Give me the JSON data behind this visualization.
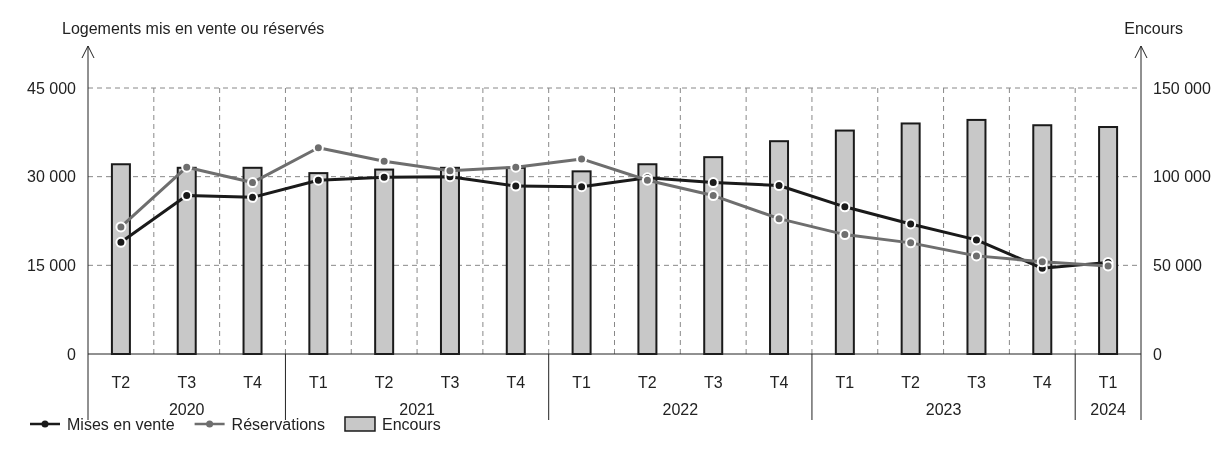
{
  "chart_data": {
    "type": "bar",
    "ylabel": "Logements mis en vente ou réservés",
    "y2label": "Encours",
    "categories": [
      "T2",
      "T3",
      "T4",
      "T1",
      "T2",
      "T3",
      "T4",
      "T1",
      "T2",
      "T3",
      "T4",
      "T1",
      "T2",
      "T3",
      "T4",
      "T1"
    ],
    "annotations": [
      "2020",
      "2021",
      "2022",
      "2023",
      "2024"
    ],
    "series": [
      {
        "name": "Mises en vente",
        "type": "line",
        "color": "#1a1a1a",
        "values": [
          18900,
          26800,
          26500,
          29400,
          29900,
          30000,
          28400,
          28300,
          29800,
          29000,
          28500,
          24900,
          22000,
          19300,
          14500,
          15500
        ]
      },
      {
        "name": "Réservations",
        "type": "line",
        "color": "#6e6e6e",
        "values": [
          21500,
          31600,
          29000,
          34900,
          32600,
          31000,
          31600,
          33000,
          29400,
          26800,
          22900,
          20200,
          18800,
          16600,
          15600,
          14900
        ]
      },
      {
        "name": "Encours",
        "axis": "y2",
        "color": "#c8c8c8",
        "values": [
          107000,
          105000,
          105000,
          102000,
          104000,
          105000,
          105000,
          103000,
          107000,
          111000,
          120000,
          126000,
          130000,
          132000,
          129000,
          128000
        ]
      }
    ],
    "ylim": [
      0,
      45000
    ],
    "yticks": [
      {
        "value": 0,
        "label": "0"
      },
      {
        "value": 15000,
        "label": "15 000"
      },
      {
        "value": 30000,
        "label": "30 000"
      },
      {
        "value": 45000,
        "label": "45 000"
      }
    ],
    "y2lim": [
      0,
      150000
    ],
    "y2ticks": [
      {
        "value": 0,
        "label": "0"
      },
      {
        "value": 50000,
        "label": "50 000"
      },
      {
        "value": 100000,
        "label": "100 000"
      },
      {
        "value": 150000,
        "label": "150 000"
      }
    ],
    "grid": true,
    "legend": "bottom left",
    "marker": "circle",
    "line_style": "solid"
  }
}
